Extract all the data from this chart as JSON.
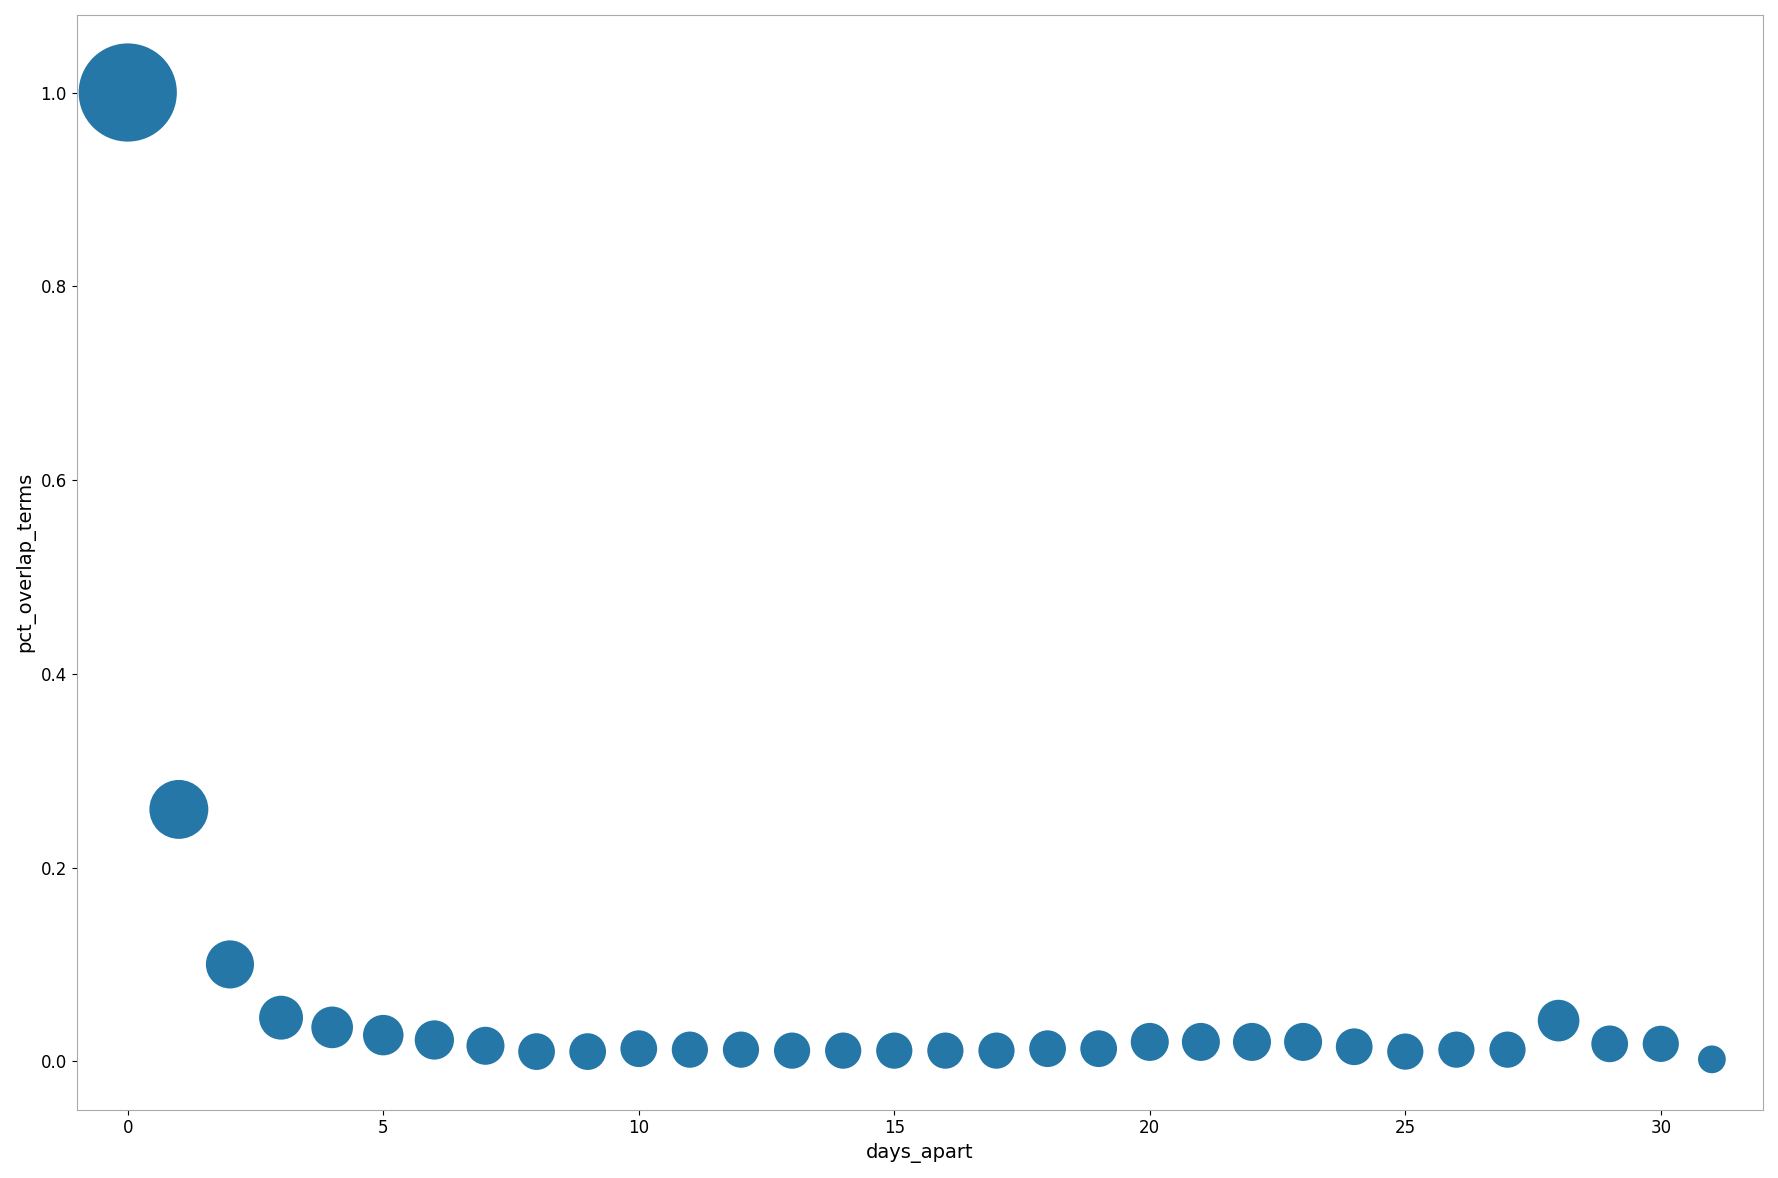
{
  "x": [
    0,
    1,
    2,
    3,
    4,
    5,
    6,
    7,
    8,
    9,
    10,
    11,
    12,
    13,
    14,
    15,
    16,
    17,
    18,
    19,
    20,
    21,
    22,
    23,
    24,
    25,
    26,
    27,
    28,
    29,
    30,
    31
  ],
  "y": [
    1.0,
    0.26,
    0.1,
    0.045,
    0.035,
    0.027,
    0.022,
    0.016,
    0.01,
    0.01,
    0.013,
    0.012,
    0.012,
    0.011,
    0.011,
    0.011,
    0.011,
    0.011,
    0.013,
    0.013,
    0.02,
    0.02,
    0.02,
    0.02,
    0.015,
    0.01,
    0.012,
    0.012,
    0.042,
    0.018,
    0.018,
    0.002
  ],
  "sizes": [
    5000,
    1800,
    1200,
    1000,
    900,
    850,
    800,
    750,
    700,
    700,
    700,
    680,
    680,
    680,
    680,
    680,
    680,
    680,
    700,
    700,
    750,
    750,
    750,
    750,
    700,
    680,
    680,
    680,
    900,
    700,
    680,
    400
  ],
  "color": "#2577a8",
  "xlabel": "days_apart",
  "ylabel": "pct_overlap_terms",
  "xlim": [
    -1,
    32
  ],
  "ylim": [
    -0.05,
    1.08
  ],
  "bg_color": "#ffffff",
  "figsize": [
    17.78,
    11.78
  ],
  "dpi": 100
}
